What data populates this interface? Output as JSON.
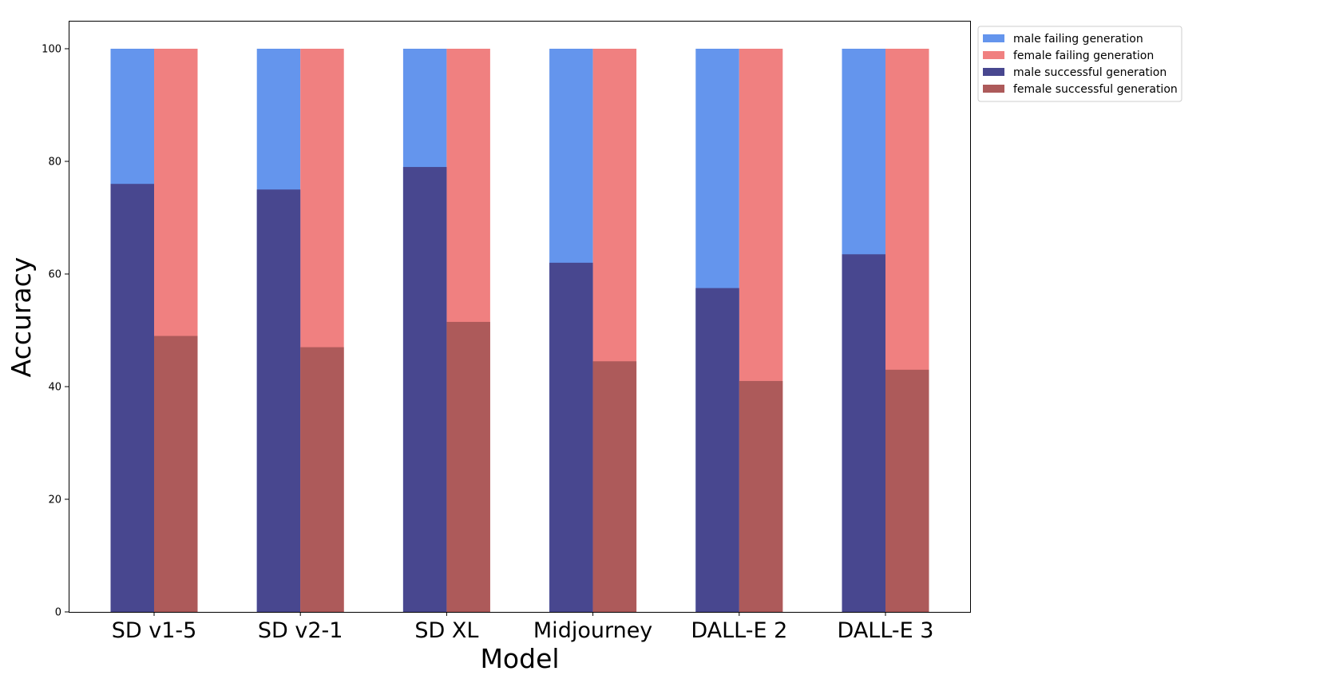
{
  "chart_data": {
    "type": "bar",
    "stacked_groups": true,
    "categories": [
      "SD v1-5",
      "SD v2-1",
      "SD XL",
      "Midjourney",
      "DALL-E 2",
      "DALL-E 3"
    ],
    "series": [
      {
        "name": "male failing generation",
        "group": "male",
        "layer": "total",
        "color": "#6495ed",
        "values": [
          100,
          100,
          100,
          100,
          100,
          100
        ]
      },
      {
        "name": "female failing generation",
        "group": "female",
        "layer": "total",
        "color": "#f08080",
        "values": [
          100,
          100,
          100,
          100,
          100,
          100
        ]
      },
      {
        "name": "male successful generation",
        "group": "male",
        "layer": "success",
        "color": "#48478f",
        "values": [
          76,
          75,
          79,
          62,
          57.5,
          63.5
        ]
      },
      {
        "name": "female successful generation",
        "group": "female",
        "layer": "success",
        "color": "#ad5a5a",
        "values": [
          49,
          47,
          51.5,
          44.5,
          41,
          43
        ]
      }
    ],
    "xlabel": "Model",
    "ylabel": "Accuracy",
    "ylim": [
      0,
      105
    ],
    "yticks": [
      0,
      20,
      40,
      60,
      80,
      100
    ],
    "grid": false,
    "legend_position": "outside-top-right"
  }
}
